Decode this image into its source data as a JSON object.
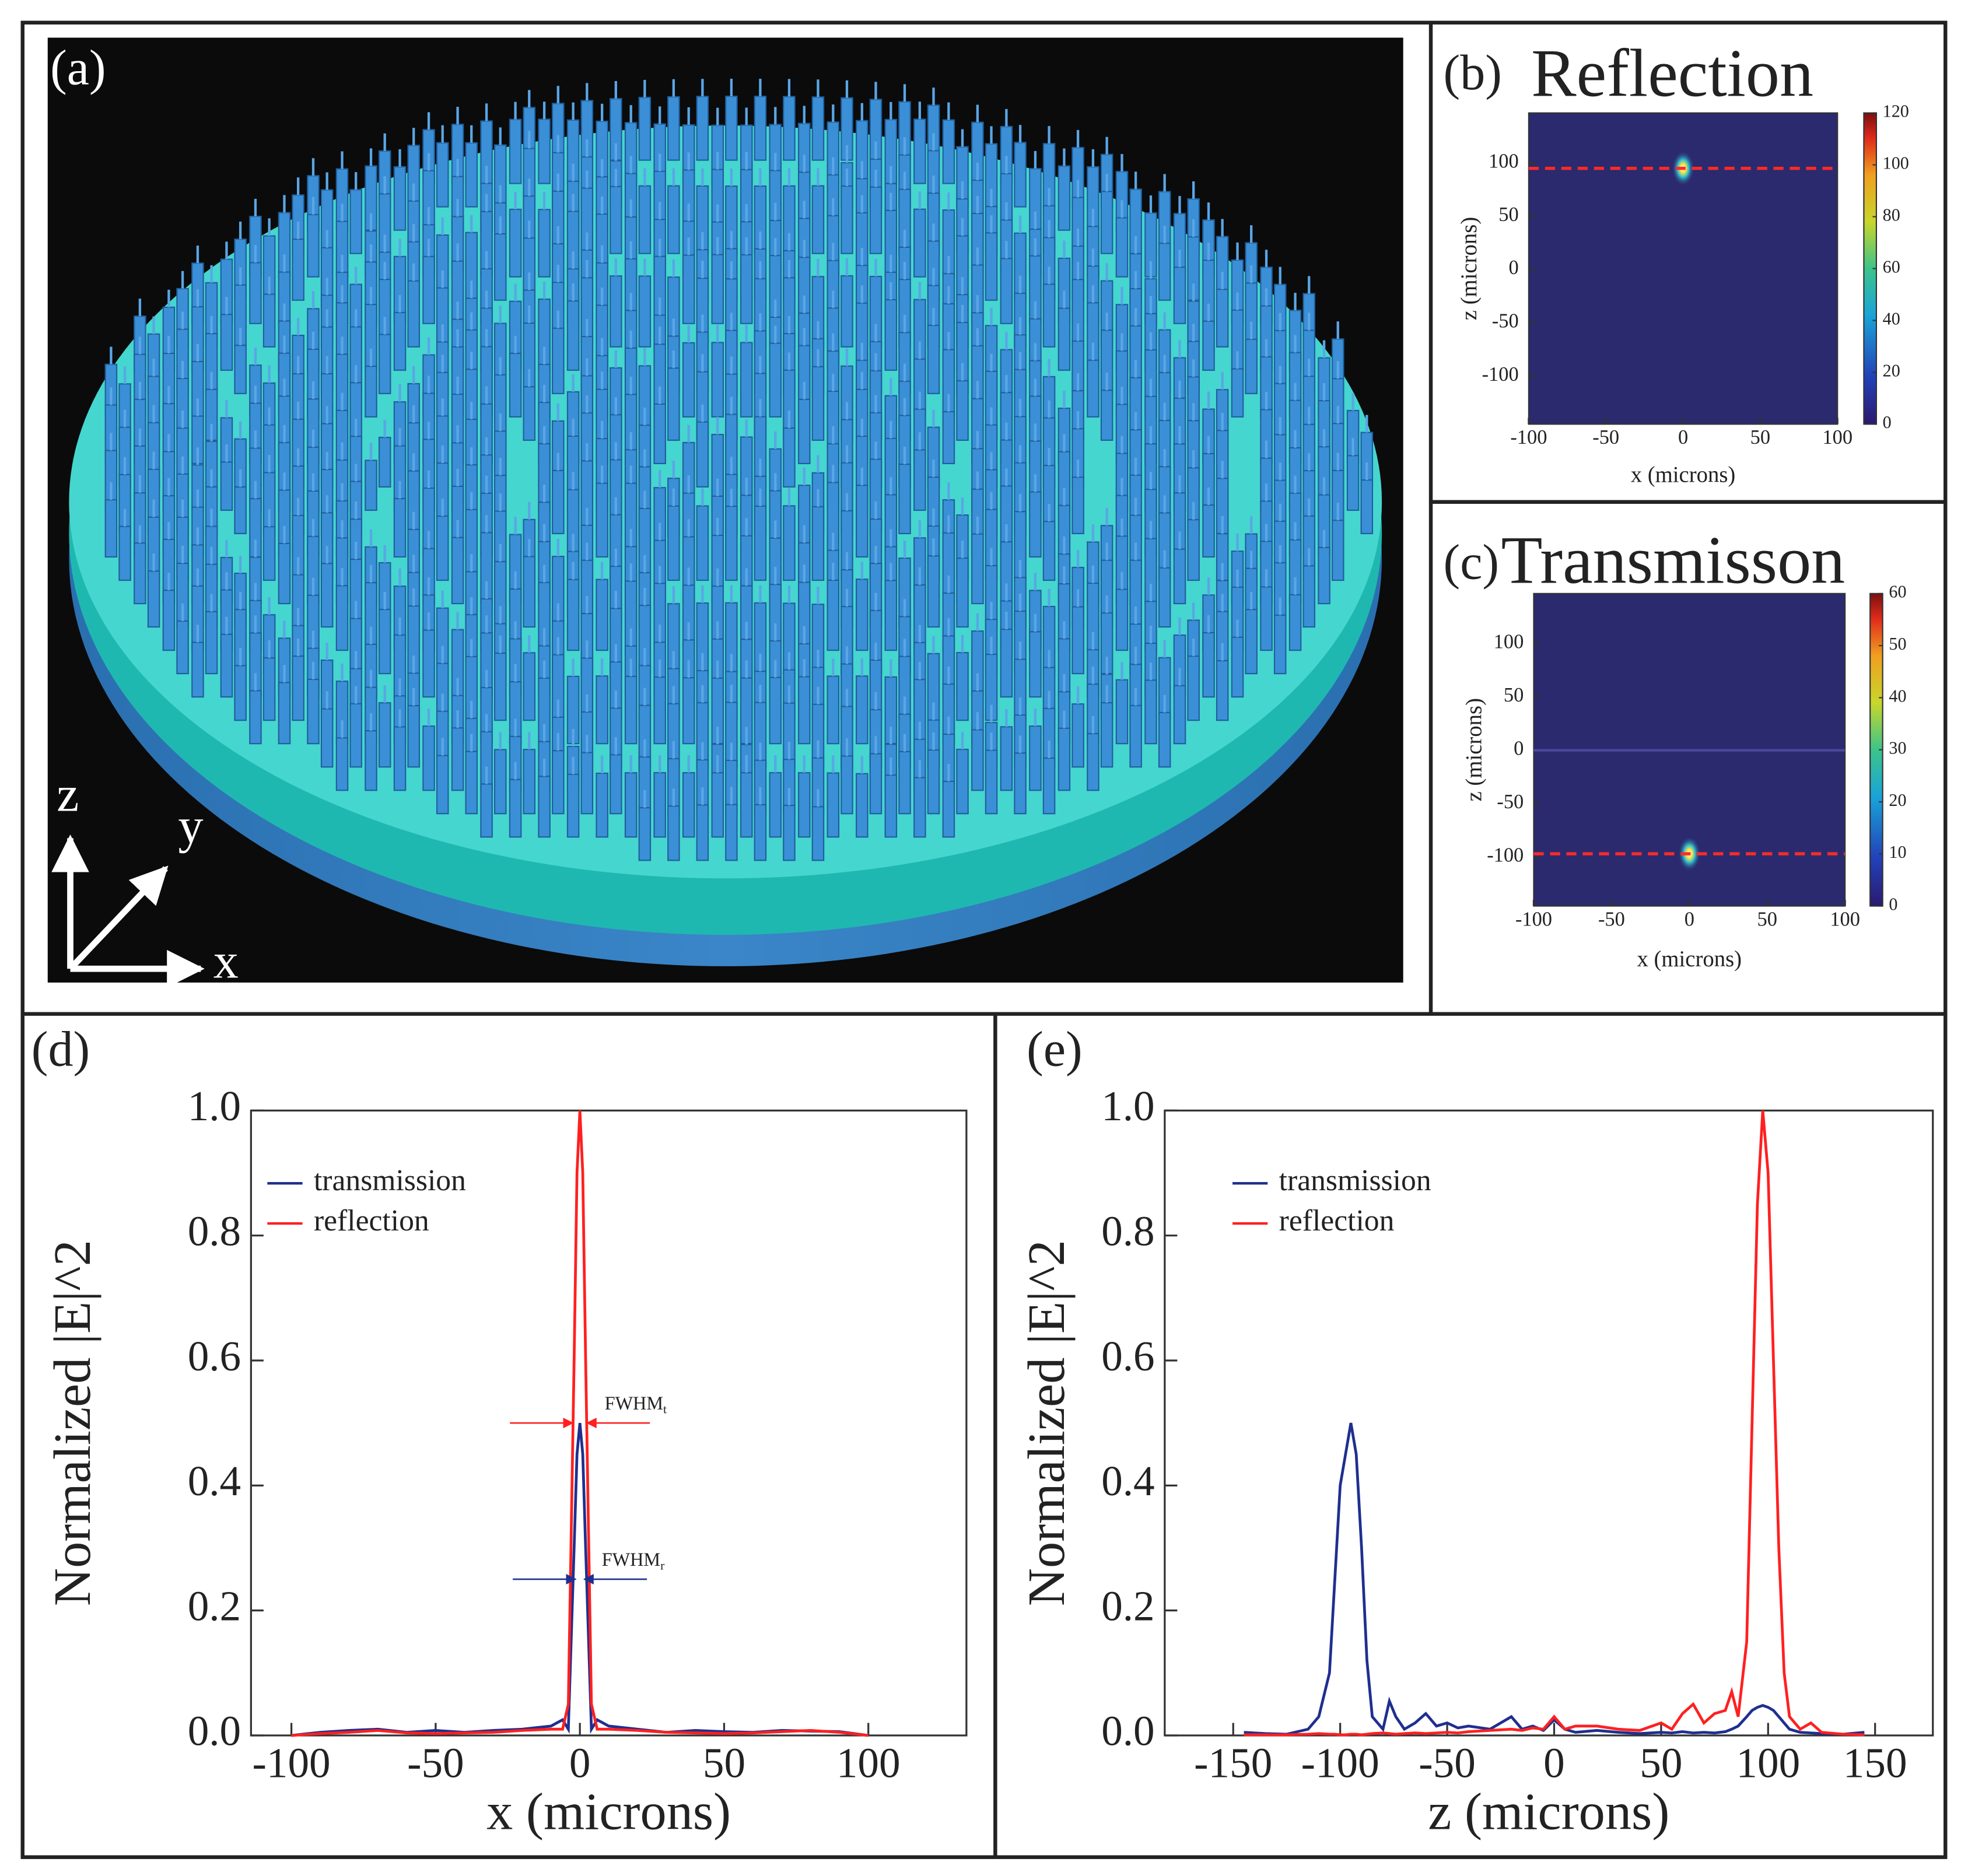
{
  "chart_data": [
    {
      "type": "image3d",
      "panel": "(a)",
      "axis_labels": [
        "z",
        "y",
        "x"
      ]
    },
    {
      "type": "heatmap",
      "panel": "(b)",
      "title": "Reflection",
      "xlabel": "x (microns)",
      "ylabel": "z (microns)",
      "xlim": [
        -100,
        100
      ],
      "ylim": [
        -145,
        147
      ],
      "xticks": [
        -100,
        -50,
        0,
        50,
        100
      ],
      "yticks": [
        -100,
        -50,
        0,
        50,
        100
      ],
      "colorbar": {
        "lim": [
          0,
          120
        ],
        "ticks": [
          0,
          20,
          40,
          60,
          80,
          100,
          120
        ]
      },
      "focus": {
        "x": 0,
        "z": 95
      },
      "line_z": 95,
      "line_color": "#ff2a2a"
    },
    {
      "type": "heatmap",
      "panel": "(c)",
      "title": "Transmisson",
      "xlabel": "x (microns)",
      "ylabel": "z (microns)",
      "xlim": [
        -100,
        100
      ],
      "ylim": [
        -146,
        147
      ],
      "xticks": [
        -100,
        -50,
        0,
        50,
        100
      ],
      "yticks": [
        -100,
        -50,
        0,
        50,
        100
      ],
      "colorbar": {
        "lim": [
          0,
          60
        ],
        "ticks": [
          0,
          10,
          20,
          30,
          40,
          50,
          60
        ]
      },
      "focus": {
        "x": 0,
        "z": -97
      },
      "line_z": -97,
      "line_color": "#ff2a2a",
      "interface_z": 0
    },
    {
      "type": "line",
      "panel": "(d)",
      "xlabel": "x (microns)",
      "ylabel": "Normalized |E|^2",
      "xlim": [
        -114,
        134
      ],
      "ylim": [
        0,
        1
      ],
      "xticks": [
        -100,
        -50,
        0,
        50,
        100
      ],
      "yticks": [
        {
          "value": 0,
          "label": "0.0"
        },
        0.2,
        0.4,
        0.6,
        0.8,
        {
          "value": 1,
          "label": "1.0"
        }
      ],
      "legend": "upper left",
      "x": [
        -100,
        -90,
        -80,
        -70,
        -60,
        -50,
        -40,
        -30,
        -20,
        -10,
        -6,
        -4,
        -2,
        -1,
        0,
        1,
        2,
        4,
        6,
        10,
        20,
        30,
        40,
        50,
        60,
        70,
        80,
        90,
        100
      ],
      "series": [
        {
          "name": "transmission",
          "color": "#1f2f8f",
          "values": [
            0,
            0.005,
            0.008,
            0.01,
            0.005,
            0.008,
            0.005,
            0.008,
            0.01,
            0.015,
            0.025,
            0.01,
            0.3,
            0.45,
            0.5,
            0.45,
            0.3,
            0.01,
            0.025,
            0.015,
            0.01,
            0.005,
            0.008,
            0.006,
            0.005,
            0.008,
            0.007,
            0.006,
            0
          ]
        },
        {
          "name": "reflection",
          "color": "#ff2020",
          "values": [
            0,
            0.003,
            0.005,
            0.008,
            0.004,
            0.003,
            0.004,
            0.005,
            0.008,
            0.01,
            0.01,
            0.05,
            0.6,
            0.9,
            1.0,
            0.9,
            0.6,
            0.05,
            0.01,
            0.01,
            0.008,
            0.005,
            0.004,
            0.003,
            0.004,
            0.006,
            0.008,
            0.005,
            0
          ]
        }
      ],
      "annotations": [
        {
          "label": "FWHM",
          "subscript": "t",
          "y": 0.5,
          "x": [
            -2.5,
            2.5
          ],
          "color": "#ff2020"
        },
        {
          "label": "FWHM",
          "subscript": "r",
          "y": 0.25,
          "x": [
            -1.5,
            1.5
          ],
          "color": "#1f2f8f"
        }
      ]
    },
    {
      "type": "line",
      "panel": "(e)",
      "xlabel": "z (microns)",
      "ylabel": "Normalized |E|^2",
      "xlim": [
        -182,
        177
      ],
      "ylim": [
        0,
        1
      ],
      "xticks": [
        -150,
        -100,
        -50,
        0,
        50,
        100,
        150
      ],
      "yticks": [
        {
          "value": 0,
          "label": "0.0"
        },
        0.2,
        0.4,
        0.6,
        0.8,
        {
          "value": 1,
          "label": "1.0"
        }
      ],
      "legend": "upper left",
      "x": [
        -145,
        -135,
        -125,
        -115,
        -110,
        -105,
        -102.5,
        -100,
        -97.5,
        -95,
        -92.5,
        -90,
        -87.5,
        -85,
        -80,
        -77,
        -74,
        -70,
        -65,
        -60,
        -55,
        -50,
        -45,
        -40,
        -30,
        -20,
        -15,
        -10,
        -5,
        0,
        5,
        10,
        20,
        30,
        40,
        50,
        55,
        60,
        65,
        70,
        75,
        80,
        83,
        86,
        90,
        92.5,
        95,
        97.5,
        100,
        102.5,
        105,
        107.5,
        110,
        115,
        120,
        125,
        135,
        145
      ],
      "series": [
        {
          "name": "transmission",
          "color": "#1f2f8f",
          "values": [
            0.005,
            0.003,
            0.002,
            0.01,
            0.03,
            0.1,
            0.25,
            0.4,
            0.45,
            0.5,
            0.45,
            0.3,
            0.12,
            0.03,
            0.01,
            0.055,
            0.03,
            0.01,
            0.02,
            0.035,
            0.015,
            0.02,
            0.012,
            0.015,
            0.01,
            0.03,
            0.01,
            0.015,
            0.008,
            0.025,
            0.01,
            0.005,
            0.008,
            0.005,
            0.003,
            0.005,
            0.004,
            0.006,
            0.004,
            0.005,
            0.004,
            0.006,
            0.01,
            0.015,
            0.03,
            0.04,
            0.045,
            0.048,
            0.045,
            0.04,
            0.03,
            0.02,
            0.01,
            0.005,
            0.004,
            0.003,
            0.002,
            0.005
          ]
        },
        {
          "name": "reflection",
          "color": "#ff2020",
          "values": [
            0.001,
            0.001,
            0.001,
            0.002,
            0.003,
            0.002,
            0.002,
            0.001,
            0.001,
            0.002,
            0.002,
            0.001,
            0.002,
            0.003,
            0.004,
            0.003,
            0.002,
            0.003,
            0.004,
            0.003,
            0.004,
            0.005,
            0.004,
            0.006,
            0.008,
            0.01,
            0.008,
            0.012,
            0.01,
            0.03,
            0.01,
            0.015,
            0.015,
            0.01,
            0.008,
            0.02,
            0.01,
            0.035,
            0.05,
            0.02,
            0.035,
            0.04,
            0.07,
            0.03,
            0.15,
            0.5,
            0.85,
            1.0,
            0.9,
            0.6,
            0.3,
            0.1,
            0.03,
            0.01,
            0.02,
            0.005,
            0.002,
            0.001
          ]
        }
      ]
    }
  ]
}
